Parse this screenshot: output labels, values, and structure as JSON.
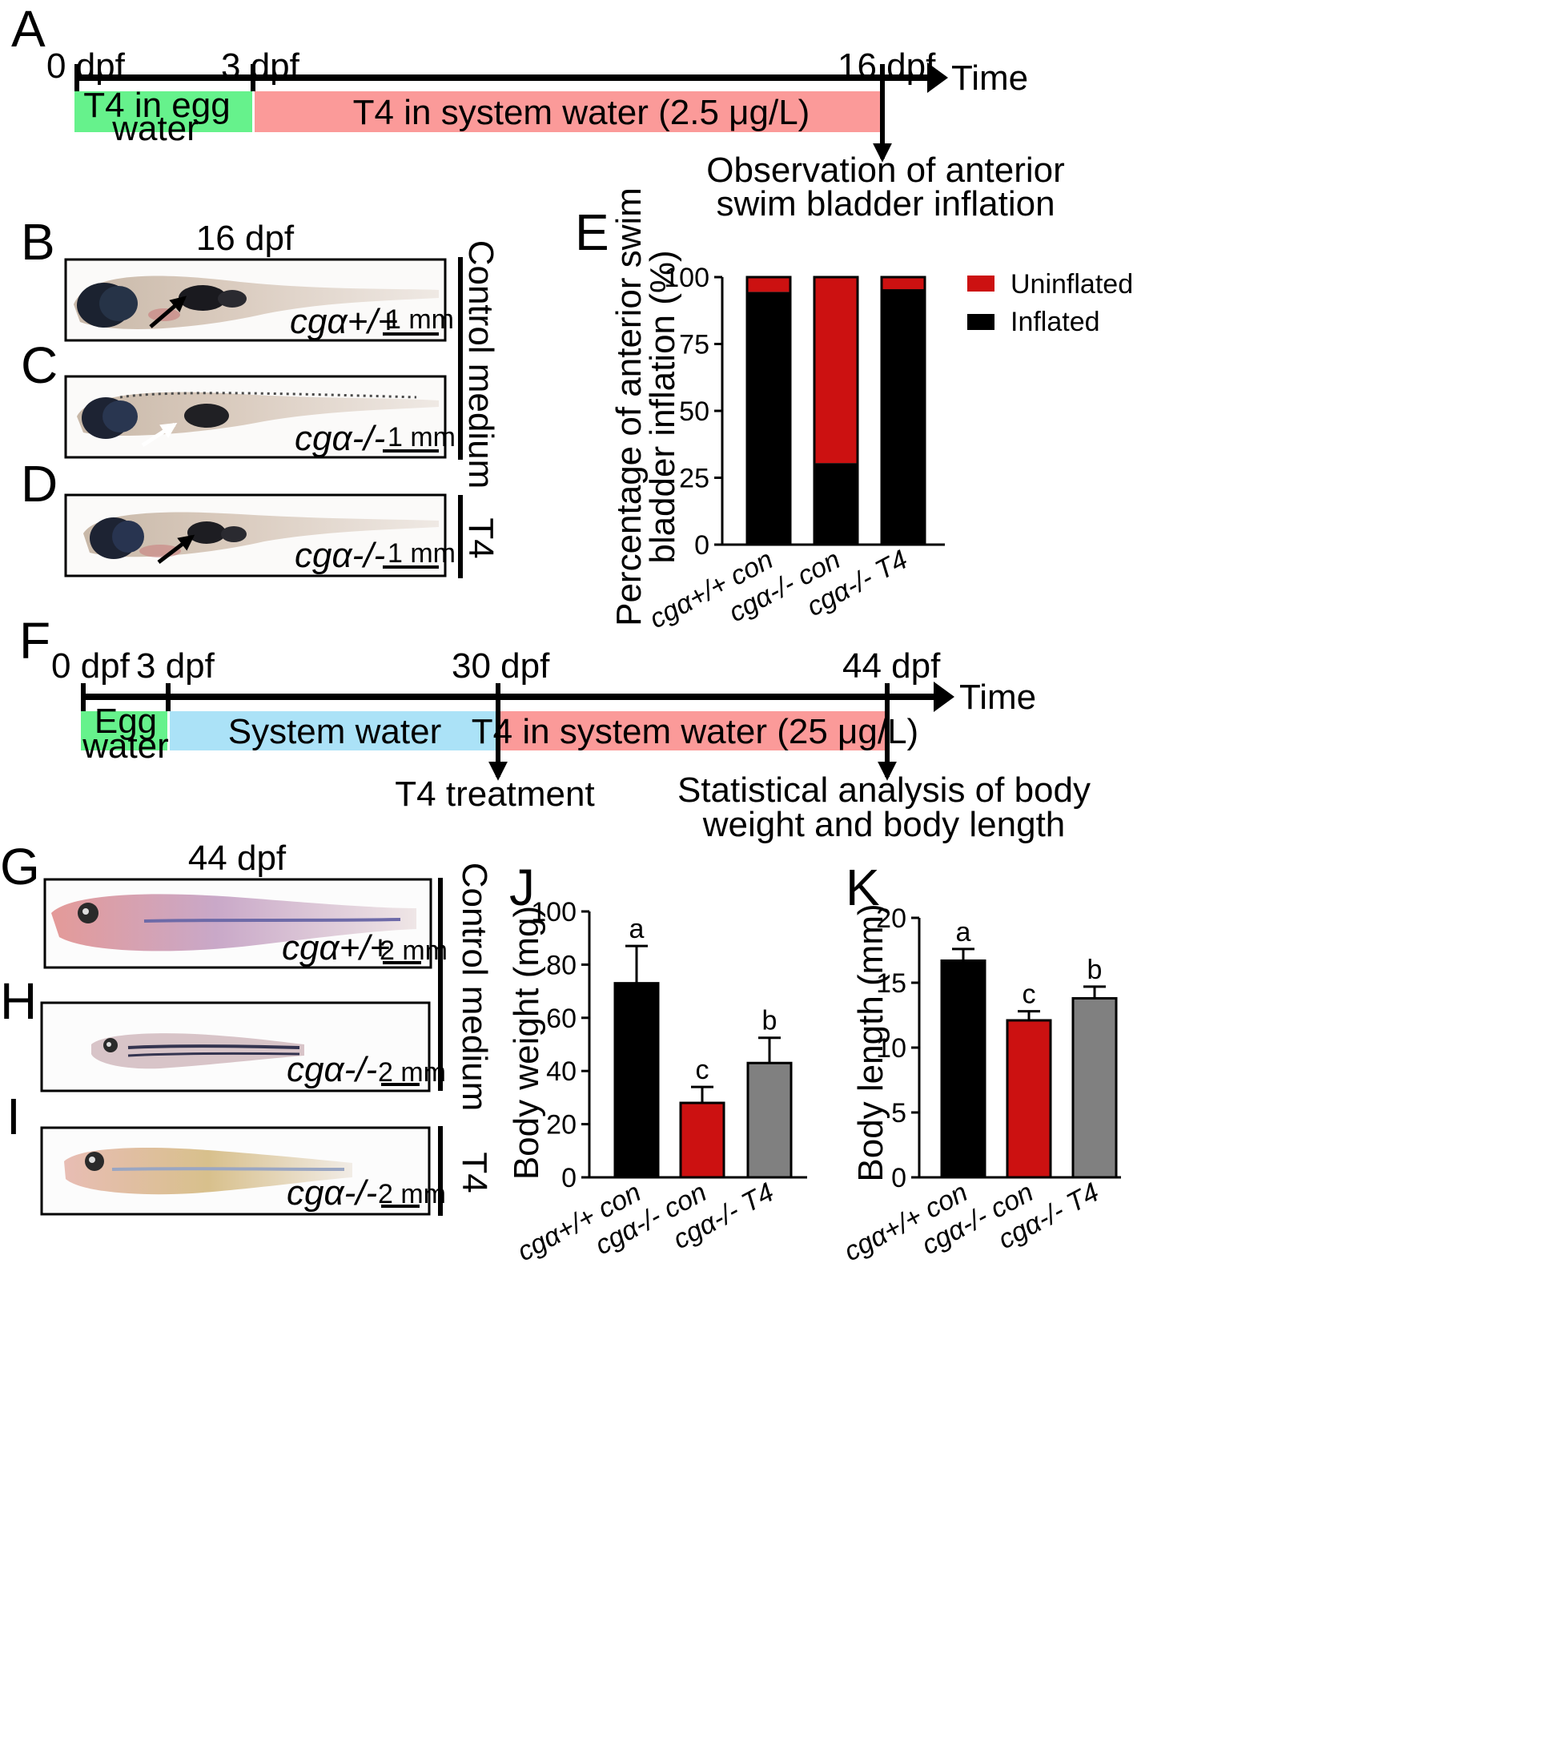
{
  "panels": {
    "A": {
      "letter": "A",
      "t0": "0 dpf",
      "t1": "3 dpf",
      "t2": "16 dpf",
      "axis": "Time",
      "egg": [
        "T4 in egg",
        "water"
      ],
      "system": "T4 in system water (2.5 μg/L)",
      "obs": [
        "Observation of anterior",
        "swim bladder inflation"
      ],
      "colors": {
        "egg": "#66f28c",
        "system": "#fb9a99"
      }
    },
    "B": {
      "letter": "B",
      "stage": "16 dpf",
      "genotype": "cgα+/+",
      "scale": "1 mm"
    },
    "C": {
      "letter": "C",
      "genotype": "cgα-/-",
      "scale": "1 mm"
    },
    "D": {
      "letter": "D",
      "genotype": "cgα-/-",
      "scale": "1 mm"
    },
    "group_small": {
      "control": "Control medium",
      "t4": "T4"
    },
    "E": {
      "letter": "E",
      "ylabel": [
        "Percentage of anterior swim",
        "bladder inflation (%)"
      ],
      "legend": [
        "Uninflated",
        "Inflated"
      ]
    },
    "F": {
      "letter": "F",
      "t0": "0 dpf",
      "t1": "3 dpf",
      "t2": "30 dpf",
      "t3": "44 dpf",
      "axis": "Time",
      "egg": [
        "Egg",
        "water"
      ],
      "system": "System water",
      "t4sys": "T4 in system water (25 μg/L)",
      "treat": "T4 treatment",
      "stats": [
        "Statistical analysis of body",
        "weight and body length"
      ],
      "colors": {
        "egg": "#66f28c",
        "system": "#abe2f7",
        "t4": "#fb9a99"
      }
    },
    "G": {
      "letter": "G",
      "stage": "44 dpf",
      "genotype": "cgα+/+",
      "scale": "2 mm"
    },
    "H": {
      "letter": "H",
      "genotype": "cgα-/-",
      "scale": "2 mm"
    },
    "I": {
      "letter": "I",
      "genotype": "cgα-/-",
      "scale": "2 mm"
    },
    "group_large": {
      "control": "Control medium",
      "t4": "T4"
    },
    "J": {
      "letter": "J",
      "ylabel": "Body weight (mg)"
    },
    "K": {
      "letter": "K",
      "ylabel": "Body length (mm)"
    }
  },
  "chart_data": [
    {
      "id": "E",
      "type": "bar",
      "stacked": true,
      "categories": [
        "cgα+/+ con",
        "cgα-/- con",
        "cgα-/- T4"
      ],
      "series": [
        {
          "name": "Inflated",
          "values": [
            94.5,
            30.5,
            95.5
          ],
          "color": "#000000"
        },
        {
          "name": "Uninflated",
          "values": [
            5.5,
            69.5,
            4.5
          ],
          "color": "#cc1111"
        }
      ],
      "ylim": [
        0,
        100
      ],
      "yticks": [
        0,
        25,
        50,
        75,
        100
      ],
      "legend": "right"
    },
    {
      "id": "J",
      "type": "bar",
      "categories": [
        "cgα+/+ con",
        "cgα-/- con",
        "cgα-/- T4"
      ],
      "values": [
        73,
        28,
        43
      ],
      "errors": [
        14,
        6,
        9.5
      ],
      "letters": [
        "a",
        "c",
        "b"
      ],
      "colors": [
        "#000000",
        "#cc1111",
        "#808080"
      ],
      "ylim": [
        0,
        100
      ],
      "yticks": [
        0,
        20,
        40,
        60,
        80,
        100
      ]
    },
    {
      "id": "K",
      "type": "bar",
      "categories": [
        "cgα+/+ con",
        "cgα-/- con",
        "cgα-/- T4"
      ],
      "values": [
        16.7,
        12.1,
        13.8
      ],
      "errors": [
        0.9,
        0.7,
        0.9
      ],
      "letters": [
        "a",
        "c",
        "b"
      ],
      "colors": [
        "#000000",
        "#cc1111",
        "#808080"
      ],
      "ylim": [
        0,
        20
      ],
      "yticks": [
        0,
        5,
        10,
        15,
        20
      ]
    }
  ]
}
